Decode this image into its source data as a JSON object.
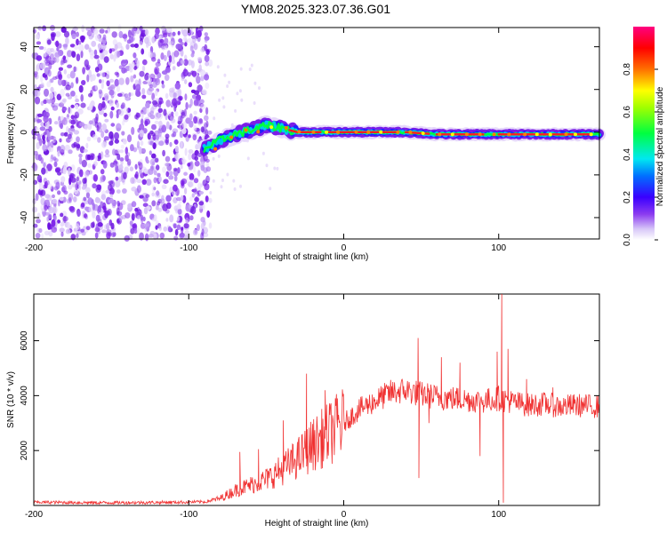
{
  "title": "YM08.2025.323.07.36.G01",
  "chart_data": [
    {
      "type": "heatmap",
      "panel": "top",
      "xlabel": "Height of straight line (km)",
      "ylabel": "Frequency (Hz)",
      "xlim": [
        -200,
        165
      ],
      "ylim": [
        -50,
        49
      ],
      "xticks": [
        -200,
        -100,
        0,
        100
      ],
      "yticks": [
        -40,
        -20,
        0,
        20,
        40
      ],
      "xtick_labels": [
        "-200",
        "-100",
        "0",
        "100"
      ],
      "ytick_labels": [
        "-40",
        "-20",
        "0",
        "20",
        "40"
      ],
      "noise_region_x": [
        -200,
        -86
      ],
      "signal_track": [
        {
          "x": -90,
          "f": -8
        },
        {
          "x": -80,
          "f": -4
        },
        {
          "x": -70,
          "f": -1
        },
        {
          "x": -60,
          "f": 1
        },
        {
          "x": -50,
          "f": 3
        },
        {
          "x": -40,
          "f": 2
        },
        {
          "x": -30,
          "f": 0
        },
        {
          "x": -20,
          "f": 0
        },
        {
          "x": -10,
          "f": 0
        },
        {
          "x": 0,
          "f": 0
        },
        {
          "x": 20,
          "f": 0
        },
        {
          "x": 40,
          "f": 0
        },
        {
          "x": 60,
          "f": -1
        },
        {
          "x": 80,
          "f": -1
        },
        {
          "x": 100,
          "f": -1
        },
        {
          "x": 120,
          "f": -1
        },
        {
          "x": 140,
          "f": -1
        },
        {
          "x": 165,
          "f": -1
        }
      ],
      "colorbar": {
        "label": "Normalized spectral amplitude",
        "range": [
          0,
          1
        ],
        "ticks": [
          0.0,
          0.2,
          0.4,
          0.6,
          0.8
        ],
        "tick_labels": [
          "0.0",
          "0.2",
          "0.4",
          "0.6",
          "0.8"
        ]
      }
    },
    {
      "type": "line",
      "panel": "bottom",
      "xlabel": "Height of straight line (km)",
      "ylabel": "SNR (10 * v/v)",
      "xlim": [
        -200,
        165
      ],
      "ylim": [
        0,
        7700
      ],
      "xticks": [
        -200,
        -100,
        0,
        100
      ],
      "yticks": [
        2000,
        4000,
        6000
      ],
      "xtick_labels": [
        "-200",
        "-100",
        "0",
        "100"
      ],
      "ytick_labels": [
        "2000",
        "4000",
        "6000"
      ],
      "series": [
        {
          "name": "SNR",
          "color": "#f03030",
          "trend": [
            [
              -200,
              120
            ],
            [
              -160,
              100
            ],
            [
              -120,
              110
            ],
            [
              -90,
              130
            ],
            [
              -80,
              250
            ],
            [
              -70,
              550
            ],
            [
              -60,
              750
            ],
            [
              -50,
              950
            ],
            [
              -40,
              1300
            ],
            [
              -30,
              1700
            ],
            [
              -20,
              2200
            ],
            [
              -10,
              2600
            ],
            [
              0,
              3000
            ],
            [
              10,
              3500
            ],
            [
              20,
              3800
            ],
            [
              30,
              4100
            ],
            [
              40,
              4200
            ],
            [
              50,
              4050
            ],
            [
              60,
              3950
            ],
            [
              70,
              3900
            ],
            [
              80,
              3850
            ],
            [
              90,
              3800
            ],
            [
              100,
              3900
            ],
            [
              110,
              3750
            ],
            [
              120,
              3650
            ],
            [
              130,
              3700
            ],
            [
              140,
              3600
            ],
            [
              150,
              3650
            ],
            [
              165,
              3600
            ]
          ],
          "spikes": [
            [
              -67,
              1950
            ],
            [
              -55,
              2050
            ],
            [
              -39,
              3100
            ],
            [
              -24,
              4800
            ],
            [
              -12,
              4200
            ],
            [
              -4,
              3900
            ],
            [
              48,
              6100
            ],
            [
              48.5,
              1000
            ],
            [
              55,
              3000
            ],
            [
              63,
              5400
            ],
            [
              75,
              5200
            ],
            [
              88,
              1800
            ],
            [
              99,
              5600
            ],
            [
              102,
              7800
            ],
            [
              103,
              100
            ],
            [
              106,
              5700
            ],
            [
              118,
              4600
            ],
            [
              135,
              4300
            ]
          ]
        }
      ]
    }
  ]
}
